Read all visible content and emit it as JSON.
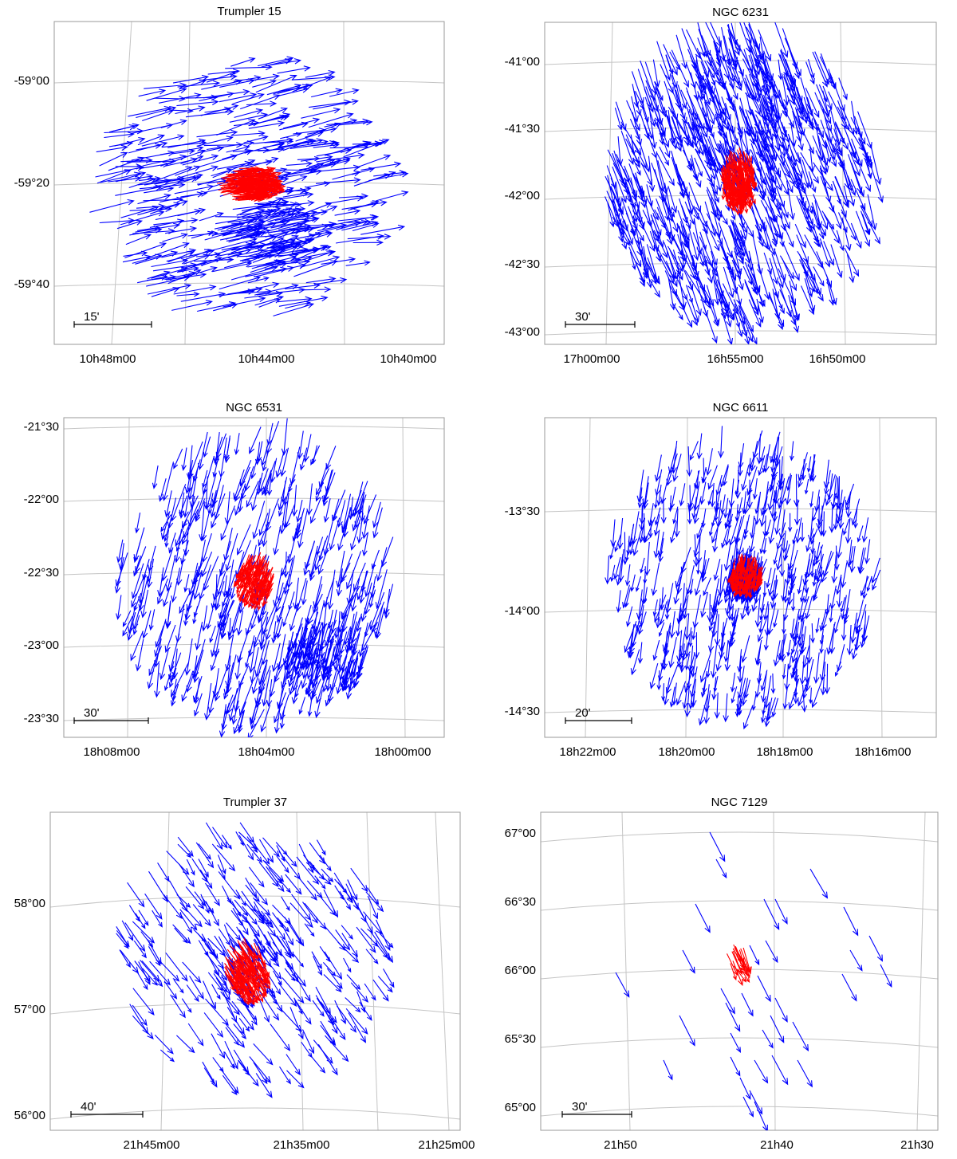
{
  "chart_data": [
    {
      "type": "vector-field",
      "title": "Trumpler 15",
      "x_ticks": [
        "10h48m00",
        "10h44m00",
        "10h40m00"
      ],
      "y_ticks": [
        "-59°00",
        "-59°20",
        "-59°40"
      ],
      "scale_label": "15'",
      "colors": {
        "field": "#0000ff",
        "members": "#ff0000"
      },
      "field_motion": {
        "direction_deg": 12,
        "mean_length": 44,
        "count": 440
      },
      "members_motion": {
        "direction_deg": 5,
        "mean_length": 28,
        "count": 180
      },
      "field_radius": 0.44,
      "members_center": [
        0.45,
        0.5
      ],
      "dense_clump": [
        0.6,
        0.66
      ]
    },
    {
      "type": "vector-field",
      "title": "NGC 6231",
      "x_ticks": [
        "17h00m00",
        "16h55m00",
        "16h50m00"
      ],
      "y_ticks": [
        "-41°00",
        "-41°30",
        "-42°00",
        "-42°30",
        "-43°00"
      ],
      "scale_label": "30'",
      "colors": {
        "field": "#0000ff",
        "members": "#ff0000"
      },
      "field_motion": {
        "direction_deg": -70,
        "mean_length": 38,
        "count": 780
      },
      "members_motion": {
        "direction_deg": -80,
        "mean_length": 20,
        "count": 200
      },
      "field_radius": 0.46,
      "members_center": [
        0.5,
        0.5
      ],
      "dense_clump": [
        0.5,
        0.3
      ]
    },
    {
      "type": "vector-field",
      "title": "NGC 6531",
      "x_ticks": [
        "18h08m00",
        "18h04m00",
        "18h00m00"
      ],
      "y_ticks": [
        "-21°30",
        "-22°00",
        "-22°30",
        "-23°00",
        "-23°30"
      ],
      "scale_label": "30'",
      "colors": {
        "field": "#0000ff",
        "members": "#ff0000"
      },
      "field_motion": {
        "direction_deg": -105,
        "mean_length": 36,
        "count": 540
      },
      "members_motion": {
        "direction_deg": -110,
        "mean_length": 18,
        "count": 160
      },
      "field_radius": 0.45,
      "members_center": [
        0.52,
        0.5
      ],
      "dense_clump": [
        0.68,
        0.74
      ]
    },
    {
      "type": "vector-field",
      "title": "NGC 6611",
      "x_ticks": [
        "18h22m00",
        "18h20m00",
        "18h18m00",
        "18h16m00"
      ],
      "y_ticks": [
        "-13°30",
        "-14°00",
        "-14°30"
      ],
      "scale_label": "20'",
      "colors": {
        "field": "#0000ff",
        "members": "#ff0000"
      },
      "field_motion": {
        "direction_deg": -100,
        "mean_length": 30,
        "count": 640
      },
      "members_motion": {
        "direction_deg": -100,
        "mean_length": 16,
        "count": 140
      },
      "field_radius": 0.45,
      "members_center": [
        0.5,
        0.5
      ],
      "dense_clump": [
        0.5,
        0.5
      ]
    },
    {
      "type": "vector-field",
      "title": "Trumpler 37",
      "x_ticks": [
        "21h45m00",
        "21h35m00",
        "21h25m00"
      ],
      "y_ticks": [
        "58°00",
        "57°00",
        "56°00"
      ],
      "scale_label": "40'",
      "colors": {
        "field": "#0000ff",
        "members": "#ff0000"
      },
      "field_motion": {
        "direction_deg": -55,
        "mean_length": 32,
        "count": 330
      },
      "members_motion": {
        "direction_deg": -60,
        "mean_length": 22,
        "count": 150
      },
      "field_radius": 0.42,
      "members_center": [
        0.5,
        0.52
      ],
      "dense_clump": [
        0.5,
        0.48
      ]
    },
    {
      "type": "vector-field",
      "title": "NGC 7129",
      "x_ticks": [
        "21h50",
        "21h40",
        "21h30"
      ],
      "y_ticks": [
        "67°00",
        "66°30",
        "66°00",
        "65°30",
        "65°00"
      ],
      "scale_label": "30'",
      "colors": {
        "field": "#0000ff",
        "members": "#ff0000"
      },
      "field_motion": {
        "direction_deg": -62,
        "mean_length": 34,
        "count": 34
      },
      "members_motion": {
        "direction_deg": -62,
        "mean_length": 26,
        "count": 20
      },
      "field_radius": 0.5,
      "members_center": [
        0.5,
        0.5
      ],
      "dense_clump": [
        0.5,
        0.5
      ]
    }
  ]
}
